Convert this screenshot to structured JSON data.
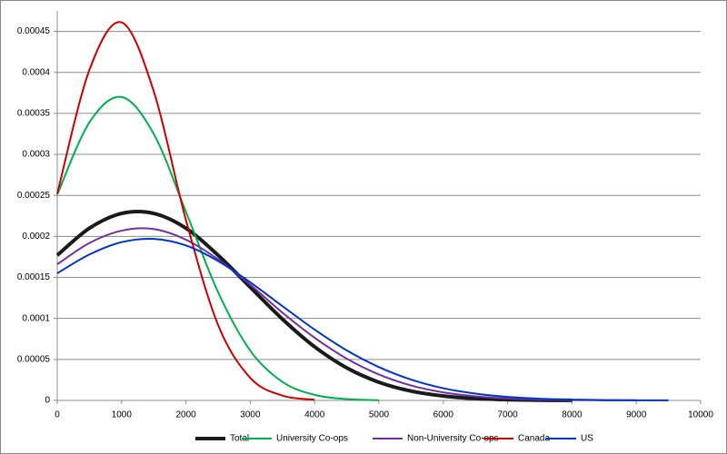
{
  "chart_data": {
    "type": "line",
    "x": [
      0,
      500,
      1000,
      1500,
      2000,
      2500,
      3000,
      3500,
      4000,
      4500,
      5000,
      5500,
      6000,
      6500,
      7000,
      7500,
      8000,
      8500,
      9000,
      9500
    ],
    "series": [
      {
        "name": "Total",
        "color": "#1a1a1a",
        "width": 4,
        "values": [
          0.000177,
          0.00021,
          0.000228,
          0.000228,
          0.00021,
          0.000177,
          0.000138,
          9.91e-05,
          6.54e-05,
          3.97e-05,
          2.22e-05,
          1.14e-05,
          5.4e-06,
          2.3e-06,
          9e-07,
          3e-07,
          1e-07,
          null,
          null,
          null
        ]
      },
      {
        "name": "University Co-ops",
        "color": "#00b050",
        "width": 2,
        "values": [
          0.000251,
          0.000339,
          0.00037,
          0.000325,
          0.00023,
          0.000132,
          6.07e-05,
          2.26e-05,
          6.8e-06,
          1.6e-06,
          3e-07,
          null,
          null,
          null,
          null,
          null,
          null,
          null,
          null,
          null
        ]
      },
      {
        "name": "Non-University Co-ops",
        "color": "#7030a0",
        "width": 2,
        "values": [
          0.000166,
          0.000192,
          0.000207,
          0.000209,
          0.000196,
          0.000172,
          0.000141,
          0.000107,
          7.65e-05,
          5.09e-05,
          3.16e-05,
          1.82e-05,
          9.8e-06,
          5e-06,
          2.3e-06,
          1e-06,
          4e-07,
          2e-07,
          1e-07,
          null
        ]
      },
      {
        "name": "Canada",
        "color": "#cc0000",
        "width": 2,
        "values": [
          0.000252,
          0.000403,
          0.000461,
          0.000377,
          0.00022,
          9.21e-05,
          2.75e-05,
          5.9e-06,
          9e-07,
          null,
          null,
          null,
          null,
          null,
          null,
          null,
          null,
          null,
          null,
          null
        ]
      },
      {
        "name": "US",
        "color": "#0033cc",
        "width": 2,
        "values": [
          0.000155,
          0.000178,
          0.000193,
          0.000197,
          0.000189,
          0.00017,
          0.000144,
          0.000115,
          8.64e-05,
          6.1e-05,
          4.06e-05,
          2.54e-05,
          1.49e-05,
          8.3e-06,
          4.3e-06,
          2.1e-06,
          1e-06,
          4e-07,
          2e-07,
          1e-07
        ]
      }
    ],
    "xlim": [
      0,
      10000
    ],
    "xticks": [
      0,
      1000,
      2000,
      3000,
      4000,
      5000,
      6000,
      7000,
      8000,
      9000,
      10000
    ],
    "ylim": [
      0,
      0.000475
    ],
    "yticks": [
      0,
      5e-05,
      0.0001,
      0.00015,
      0.0002,
      0.00025,
      0.0003,
      0.00035,
      0.0004,
      0.00045
    ],
    "grid": true,
    "legend": "bottom"
  }
}
